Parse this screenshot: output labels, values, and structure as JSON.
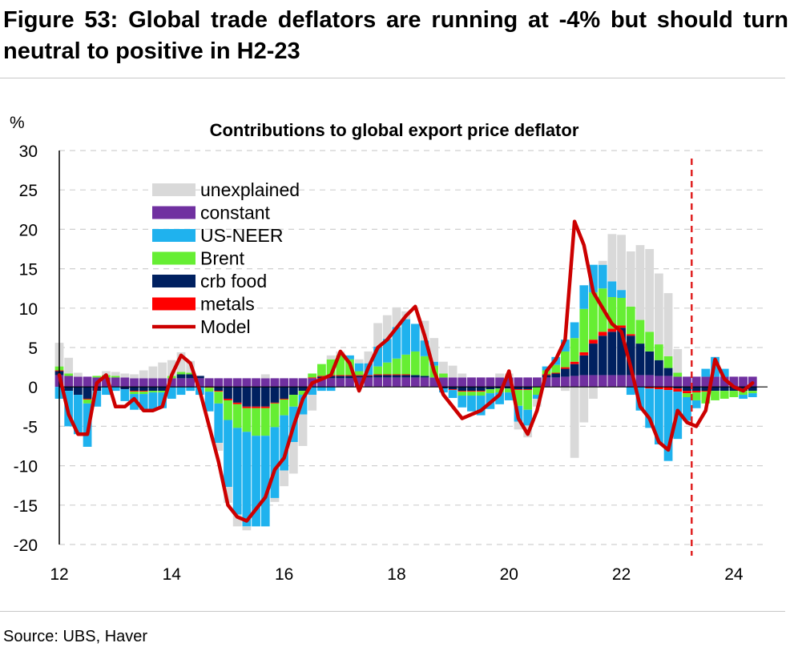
{
  "figure": {
    "title": "Figure 53: Global trade deflators are running at -4% but should turn neutral to positive in H2-23",
    "source": "Source: UBS, Haver"
  },
  "colors": {
    "unexplained": "#d9d9d9",
    "constant": "#7030a0",
    "us_neer": "#1fb2ee",
    "brent": "#66ee33",
    "crb_food": "#002060",
    "metals": "#ff0000",
    "model": "#cc0000",
    "forecast_line": "#e02020",
    "grid": "#d0d0d0"
  },
  "chart_data": {
    "type": "bar",
    "subtype": "stacked bar with line overlay",
    "title": "Contributions to global export price deflator",
    "ylabel": "%",
    "xlabel": "",
    "ylim": [
      -20,
      30
    ],
    "yticks": [
      30,
      25,
      20,
      15,
      10,
      5,
      0,
      -5,
      -10,
      -15,
      -20
    ],
    "xlim": [
      2012,
      2024.6
    ],
    "xtick_labels": [
      "12",
      "14",
      "16",
      "18",
      "20",
      "22",
      "24"
    ],
    "xtick_values": [
      2012,
      2014,
      2016,
      2018,
      2020,
      2022,
      2024
    ],
    "grid": "horizontal dashed",
    "legend_position": "top-left",
    "forecast_marker_x": 2023.25,
    "legend": [
      "unexplained",
      "constant",
      "US-NEER",
      "Brent",
      "crb food",
      "metals",
      "Model"
    ],
    "x": [
      "2012-01",
      "2012-03",
      "2012-05",
      "2012-07",
      "2012-09",
      "2012-11",
      "2013-01",
      "2013-03",
      "2013-05",
      "2013-07",
      "2013-09",
      "2013-11",
      "2014-01",
      "2014-03",
      "2014-05",
      "2014-07",
      "2014-09",
      "2014-11",
      "2015-01",
      "2015-03",
      "2015-05",
      "2015-07",
      "2015-09",
      "2015-11",
      "2016-01",
      "2016-03",
      "2016-05",
      "2016-07",
      "2016-09",
      "2016-11",
      "2017-01",
      "2017-03",
      "2017-05",
      "2017-07",
      "2017-09",
      "2017-11",
      "2018-01",
      "2018-03",
      "2018-05",
      "2018-07",
      "2018-09",
      "2018-11",
      "2019-01",
      "2019-03",
      "2019-05",
      "2019-07",
      "2019-09",
      "2019-11",
      "2020-01",
      "2020-03",
      "2020-05",
      "2020-07",
      "2020-09",
      "2020-11",
      "2021-01",
      "2021-03",
      "2021-05",
      "2021-07",
      "2021-09",
      "2021-11",
      "2022-01",
      "2022-03",
      "2022-05",
      "2022-07",
      "2022-09",
      "2022-11",
      "2023-01",
      "2023-03",
      "2023-05",
      "2023-07",
      "2023-09",
      "2023-11",
      "2024-01",
      "2024-03",
      "2024-05"
    ],
    "series": [
      {
        "name": "constant",
        "values": [
          1.5,
          1.4,
          1.3,
          1.3,
          1.2,
          1.2,
          1.2,
          1.2,
          1.1,
          1.1,
          1.1,
          1.1,
          1.1,
          1.1,
          1.1,
          1.1,
          1.1,
          1.1,
          1.1,
          1.1,
          1.1,
          1.1,
          1.1,
          1.1,
          1.1,
          1.1,
          1.1,
          1.1,
          1.1,
          1.1,
          1.1,
          1.1,
          1.2,
          1.2,
          1.2,
          1.2,
          1.2,
          1.2,
          1.2,
          1.2,
          1.2,
          1.2,
          1.2,
          1.2,
          1.2,
          1.2,
          1.2,
          1.2,
          1.2,
          1.2,
          1.2,
          1.2,
          1.2,
          1.2,
          1.3,
          1.4,
          1.5,
          1.5,
          1.5,
          1.5,
          1.5,
          1.5,
          1.5,
          1.5,
          1.4,
          1.4,
          1.3,
          1.3,
          1.3,
          1.3,
          1.3,
          1.3,
          1.3,
          1.3,
          1.3
        ]
      },
      {
        "name": "US-NEER",
        "values": [
          -1.5,
          -4.5,
          -5.0,
          -5.5,
          -2.0,
          -1.0,
          -0.5,
          -1.5,
          -2.0,
          -2.0,
          -2.2,
          -2.0,
          -1.5,
          -1.0,
          -0.5,
          -1.0,
          -2.5,
          -5.0,
          -8.5,
          -11.0,
          -12.0,
          -11.5,
          -11.5,
          -9.0,
          -7.0,
          -4.5,
          -2.5,
          -1.0,
          -0.5,
          -0.5,
          0.0,
          0.5,
          1.0,
          1.5,
          2.5,
          3.0,
          4.0,
          4.5,
          3.5,
          2.0,
          0.5,
          -0.5,
          -1.0,
          -1.5,
          -2.0,
          -2.5,
          -2.0,
          -1.5,
          -1.0,
          -2.0,
          -2.0,
          -0.5,
          0.5,
          1.0,
          1.5,
          2.0,
          3.0,
          3.5,
          3.0,
          2.0,
          1.0,
          -1.0,
          -3.0,
          -5.0,
          -7.0,
          -9.0,
          -6.0,
          -3.0,
          -1.0,
          1.0,
          2.5,
          1.0,
          0.0,
          -0.5,
          -0.5
        ]
      },
      {
        "name": "Brent",
        "values": [
          0.5,
          0.3,
          0.0,
          -0.5,
          0.2,
          0.3,
          0.2,
          0.0,
          -0.3,
          -0.3,
          -0.2,
          -0.2,
          0.3,
          0.3,
          0.2,
          0.0,
          -0.5,
          -1.5,
          -2.5,
          -3.0,
          -3.0,
          -3.5,
          -3.5,
          -3.0,
          -2.0,
          -1.5,
          -0.5,
          0.5,
          1.5,
          2.0,
          2.5,
          2.0,
          0.5,
          0.0,
          1.0,
          1.5,
          2.0,
          2.5,
          3.0,
          2.5,
          1.5,
          0.5,
          0.0,
          -0.5,
          -0.5,
          -0.5,
          -0.5,
          -0.5,
          -0.5,
          -2.0,
          -2.5,
          -1.0,
          0.5,
          1.0,
          2.0,
          3.0,
          5.5,
          6.0,
          5.5,
          4.0,
          3.5,
          3.5,
          3.0,
          2.5,
          2.0,
          1.5,
          0.5,
          -0.5,
          -1.0,
          -1.5,
          -1.2,
          -1.0,
          -0.8,
          -0.5,
          -0.3
        ]
      },
      {
        "name": "crb food",
        "values": [
          0.5,
          -0.5,
          -1.0,
          -1.5,
          -0.5,
          0.0,
          0.0,
          -0.3,
          -0.5,
          -0.5,
          -0.5,
          -0.5,
          0.0,
          0.5,
          0.5,
          0.3,
          0.0,
          -0.5,
          -1.5,
          -2.0,
          -2.5,
          -2.5,
          -2.5,
          -2.0,
          -1.5,
          -1.0,
          -0.5,
          0.0,
          0.2,
          0.3,
          0.3,
          0.3,
          0.2,
          0.2,
          0.3,
          0.3,
          0.3,
          0.3,
          0.3,
          0.2,
          0.0,
          -0.2,
          -0.3,
          -0.5,
          -0.5,
          -0.5,
          -0.3,
          -0.2,
          -0.2,
          -0.3,
          -0.3,
          0.0,
          0.3,
          0.5,
          1.0,
          1.5,
          2.5,
          4.0,
          5.0,
          5.5,
          6.0,
          5.0,
          4.0,
          3.0,
          2.0,
          1.0,
          -0.2,
          -0.5,
          -0.5,
          -0.5,
          -0.5,
          -0.5,
          -0.5,
          -0.5,
          -0.5
        ]
      },
      {
        "name": "metals",
        "values": [
          0.1,
          0.0,
          0.0,
          -0.1,
          0.0,
          0.0,
          0.0,
          0.0,
          -0.1,
          -0.1,
          0.0,
          0.0,
          0.0,
          0.0,
          0.0,
          0.0,
          -0.1,
          -0.1,
          -0.2,
          -0.2,
          -0.2,
          -0.2,
          -0.2,
          -0.1,
          -0.1,
          0.0,
          0.0,
          0.1,
          0.1,
          0.1,
          0.1,
          0.1,
          0.1,
          0.1,
          0.1,
          0.1,
          0.1,
          0.1,
          0.0,
          0.0,
          0.0,
          0.0,
          -0.1,
          -0.1,
          -0.1,
          -0.1,
          0.0,
          0.0,
          0.0,
          -0.1,
          -0.1,
          0.0,
          0.1,
          0.1,
          0.2,
          0.3,
          0.4,
          0.5,
          0.5,
          0.4,
          0.3,
          0.2,
          0.0,
          -0.2,
          -0.3,
          -0.4,
          -0.4,
          -0.3,
          -0.2,
          -0.1,
          0.0,
          0.0,
          0.0,
          0.0,
          0.0
        ]
      },
      {
        "name": "unexplained",
        "values": [
          3.0,
          2.0,
          0.5,
          0.0,
          0.0,
          0.5,
          0.5,
          0.5,
          0.5,
          1.0,
          1.5,
          2.0,
          2.0,
          2.5,
          1.5,
          0.0,
          0.0,
          -1.0,
          -2.0,
          -1.5,
          -0.5,
          0.0,
          0.5,
          -0.5,
          -2.0,
          -4.0,
          -4.0,
          -2.0,
          0.0,
          0.5,
          0.5,
          0.0,
          0.5,
          1.5,
          3.0,
          3.0,
          2.5,
          1.0,
          0.0,
          2.5,
          3.0,
          1.5,
          1.5,
          0.5,
          0.0,
          0.0,
          0.0,
          0.5,
          0.5,
          -1.0,
          -1.5,
          -1.0,
          0.0,
          0.0,
          -0.5,
          -9.0,
          -4.5,
          -1.5,
          0.5,
          6.0,
          7.0,
          7.0,
          9.5,
          10.5,
          9.0,
          8.0,
          3.0,
          0.0,
          0.0,
          0.0,
          0.0,
          0.0,
          0.0,
          0.0,
          0.0
        ]
      },
      {
        "name": "Model",
        "values": [
          1.5,
          -3.5,
          -6.0,
          -6.0,
          0.5,
          1.5,
          -2.5,
          -2.5,
          -1.5,
          -3.0,
          -3.0,
          -2.5,
          1.5,
          4.0,
          3.0,
          -0.5,
          -5.0,
          -9.5,
          -15.0,
          -16.5,
          -17.0,
          -15.5,
          -14.0,
          -10.5,
          -9.0,
          -5.0,
          -1.5,
          0.5,
          1.0,
          1.5,
          4.5,
          3.0,
          -0.5,
          2.5,
          5.0,
          6.0,
          7.5,
          9.0,
          10.2,
          6.5,
          2.0,
          -1.0,
          -2.5,
          -4.0,
          -3.5,
          -3.0,
          -2.0,
          -1.0,
          2.0,
          -4.0,
          -6.0,
          -3.0,
          2.0,
          3.5,
          6.0,
          21.0,
          18.0,
          12.0,
          10.0,
          8.0,
          7.0,
          2.5,
          -2.5,
          -4.0,
          -7.0,
          -8.0,
          -3.0,
          -4.5,
          -5.0,
          -3.0,
          3.5,
          1.0,
          0.0,
          -0.5,
          0.5
        ]
      }
    ]
  }
}
